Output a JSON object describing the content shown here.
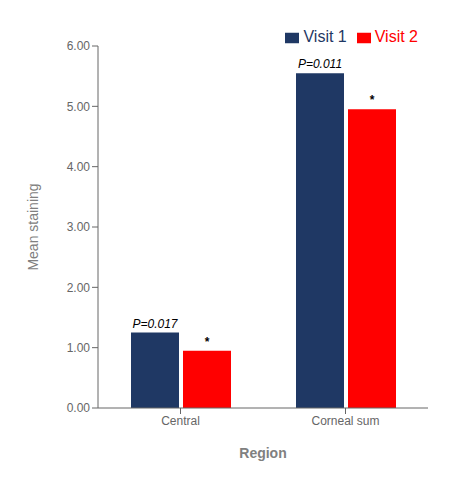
{
  "chart_data": {
    "type": "bar",
    "categories": [
      "Central",
      "Corneal sum"
    ],
    "series": [
      {
        "name": "Visit 1",
        "color": "#1F3864",
        "values": [
          1.25,
          5.55
        ]
      },
      {
        "name": "Visit 2",
        "color": "#FF0000",
        "values": [
          0.95,
          4.95
        ]
      }
    ],
    "xlabel": "Region",
    "ylabel": "Mean staining",
    "ylim": [
      0,
      6.0
    ],
    "yticks": [
      {
        "value": 0,
        "label": "0.00"
      },
      {
        "value": 1,
        "label": "1.00"
      },
      {
        "value": 2,
        "label": "2.00"
      },
      {
        "value": 3,
        "label": "3.00"
      },
      {
        "value": 4,
        "label": "4.00"
      },
      {
        "value": 5,
        "label": "5.00"
      },
      {
        "value": 6,
        "label": "6.00"
      }
    ],
    "annotations": [
      {
        "series": "Visit 1",
        "category": "Central",
        "text": "P=0.017"
      },
      {
        "series": "Visit 1",
        "category": "Corneal sum",
        "text": "P=0.011"
      },
      {
        "series": "Visit 2",
        "category": "Central",
        "text": "*"
      },
      {
        "series": "Visit 2",
        "category": "Corneal sum",
        "text": "*"
      }
    ],
    "legend": "upper right"
  }
}
